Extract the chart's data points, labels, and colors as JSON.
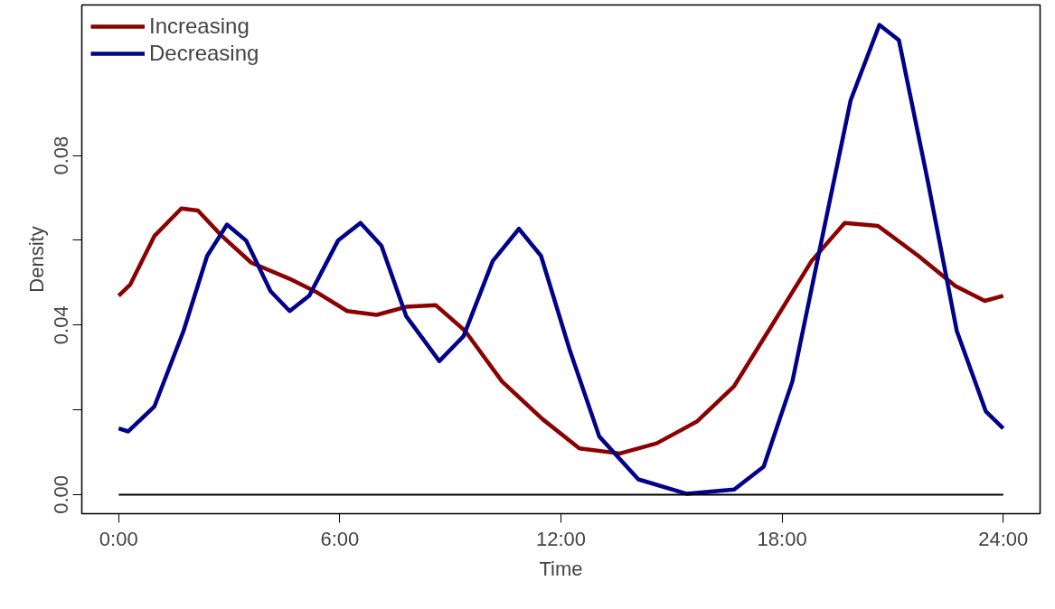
{
  "chart_data": {
    "type": "line",
    "xlabel": "Time",
    "ylabel": "Density",
    "xlim": [
      -1,
      25
    ],
    "ylim": [
      -0.0045,
      0.1155
    ],
    "xticks": [
      {
        "value": 0,
        "label": "0:00"
      },
      {
        "value": 6,
        "label": "6:00"
      },
      {
        "value": 12,
        "label": "12:00"
      },
      {
        "value": 18,
        "label": "18:00"
      },
      {
        "value": 24,
        "label": "24:00"
      }
    ],
    "yticks": [
      {
        "value": 0,
        "label": "0.00"
      },
      {
        "value": 0.02,
        "label": null
      },
      {
        "value": 0.04,
        "label": "0.04"
      },
      {
        "value": 0.06,
        "label": null
      },
      {
        "value": 0.08,
        "label": "0.08"
      }
    ],
    "grid": false,
    "legend": "top left",
    "marker": "none",
    "line_style": "solid",
    "ref_lines": [
      {
        "axis": "y",
        "value": 0,
        "label": null,
        "color": "#000000"
      }
    ],
    "series": [
      {
        "name": "Increasing",
        "color": "#8b0000",
        "x": [
          0,
          0.31,
          0.97,
          1.7,
          2.15,
          2.8,
          3.6,
          4.64,
          5.4,
          6.2,
          7.0,
          7.8,
          8.6,
          9.4,
          10.4,
          11.5,
          12.5,
          13.6,
          14.6,
          15.7,
          16.7,
          17.8,
          18.8,
          19.7,
          20.6,
          21.7,
          22.7,
          23.5,
          24
        ],
        "values": [
          0.0469,
          0.0495,
          0.061,
          0.0675,
          0.067,
          0.061,
          0.0547,
          0.0509,
          0.0476,
          0.0433,
          0.0424,
          0.0443,
          0.0447,
          0.0386,
          0.0267,
          0.0178,
          0.0109,
          0.0097,
          0.0121,
          0.0173,
          0.0256,
          0.041,
          0.0551,
          0.0641,
          0.0634,
          0.0563,
          0.0492,
          0.0457,
          0.0469
        ]
      },
      {
        "name": "Decreasing",
        "color": "#00008b",
        "x": [
          0,
          0.26,
          0.97,
          1.76,
          2.4,
          2.94,
          3.46,
          4.12,
          4.64,
          5.17,
          5.95,
          6.56,
          7.13,
          7.8,
          8.7,
          9.36,
          10.15,
          10.86,
          11.46,
          12.25,
          13.04,
          14.1,
          15.4,
          16.7,
          17.5,
          18.28,
          19.07,
          19.86,
          20.64,
          21.17,
          21.95,
          22.74,
          23.53,
          24
        ],
        "values": [
          0.0156,
          0.0149,
          0.0208,
          0.0386,
          0.0563,
          0.0637,
          0.0599,
          0.048,
          0.0433,
          0.0469,
          0.0599,
          0.0641,
          0.0587,
          0.0421,
          0.0315,
          0.0374,
          0.0551,
          0.0627,
          0.0563,
          0.0338,
          0.0137,
          0.0036,
          0.0002,
          0.0012,
          0.0066,
          0.0267,
          0.0599,
          0.093,
          0.1108,
          0.1072,
          0.0741,
          0.0386,
          0.0196,
          0.0156
        ]
      }
    ]
  }
}
